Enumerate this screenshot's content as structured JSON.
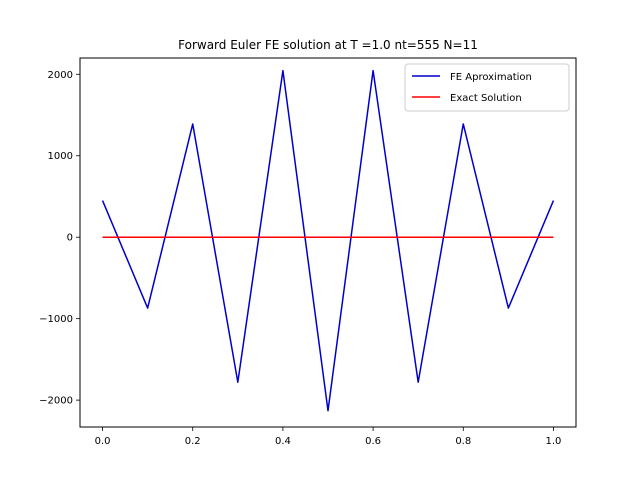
{
  "chart_data": {
    "type": "line",
    "title": "Forward Euler FE solution at T =1.0 nt=555 N=11",
    "xlabel": "",
    "ylabel": "",
    "xlim": [
      -0.05,
      1.05
    ],
    "ylim": [
      -2330,
      2200
    ],
    "xticks": [
      0.0,
      0.2,
      0.4,
      0.6,
      0.8,
      1.0
    ],
    "xtick_labels": [
      "0.0",
      "0.2",
      "0.4",
      "0.6",
      "0.8",
      "1.0"
    ],
    "yticks": [
      -2000,
      -1000,
      0,
      1000,
      2000
    ],
    "ytick_labels": [
      "−2000",
      "−1000",
      "0",
      "1000",
      "2000"
    ],
    "grid": false,
    "legend_position": "top-right",
    "series": [
      {
        "name": "FE Aproximation",
        "color": "#0000cc",
        "x": [
          0.0,
          0.1,
          0.2,
          0.3,
          0.4,
          0.5,
          0.6,
          0.7,
          0.8,
          0.9,
          1.0
        ],
        "y": [
          450,
          -870,
          1390,
          -1780,
          2045,
          -2130,
          2045,
          -1780,
          1390,
          -870,
          450
        ]
      },
      {
        "name": "Exact Solution",
        "color": "#ff0000",
        "x": [
          0.0,
          0.1,
          0.2,
          0.3,
          0.4,
          0.5,
          0.6,
          0.7,
          0.8,
          0.9,
          1.0
        ],
        "y": [
          0,
          0,
          0,
          0,
          0,
          0,
          0,
          0,
          0,
          0,
          0
        ]
      }
    ]
  }
}
